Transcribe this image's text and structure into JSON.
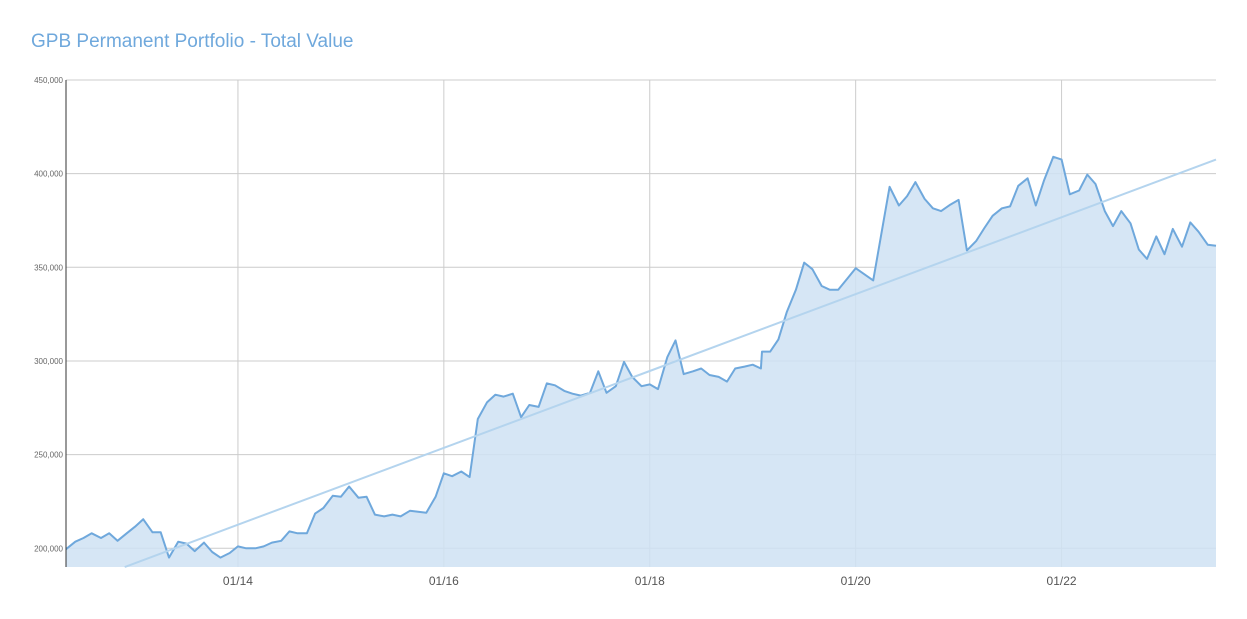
{
  "chart_data": {
    "type": "area",
    "title": "GPB Permanent Portfolio - Total Value",
    "xlabel": "",
    "ylabel": "",
    "y_ticks": [
      "200,000",
      "250,000",
      "300,000",
      "350,000",
      "400,000",
      "450,000"
    ],
    "y_tick_values": [
      200000,
      250000,
      300000,
      350000,
      400000,
      450000
    ],
    "x_ticks": [
      "01/14",
      "01/16",
      "01/18",
      "01/20",
      "01/22"
    ],
    "x_tick_values": [
      2014,
      2016,
      2018,
      2020,
      2022
    ],
    "xlim": [
      2012.33,
      2023.5
    ],
    "ylim": [
      190000,
      450000
    ],
    "grid": true,
    "legend": "none",
    "colors": {
      "line": "#6fa8dc",
      "fill": "#cfe2f3",
      "trend": "#b4d4ee",
      "grid": "#cccccc",
      "axis": "#333333"
    },
    "series": [
      {
        "values": [
          [
            2012.33,
            199500
          ],
          [
            2012.42,
            203500
          ],
          [
            2012.5,
            205500
          ],
          [
            2012.58,
            208000
          ],
          [
            2012.67,
            205500
          ],
          [
            2012.75,
            208000
          ],
          [
            2012.83,
            204000
          ],
          [
            2012.92,
            208000
          ],
          [
            2013.0,
            211500
          ],
          [
            2013.08,
            215500
          ],
          [
            2013.17,
            208500
          ],
          [
            2013.25,
            208500
          ],
          [
            2013.33,
            195000
          ],
          [
            2013.42,
            203500
          ],
          [
            2013.5,
            202500
          ],
          [
            2013.58,
            198500
          ],
          [
            2013.67,
            203000
          ],
          [
            2013.75,
            198000
          ],
          [
            2013.83,
            195000
          ],
          [
            2013.92,
            197500
          ],
          [
            2014.0,
            201000
          ],
          [
            2014.08,
            200000
          ],
          [
            2014.17,
            200000
          ],
          [
            2014.25,
            201000
          ],
          [
            2014.33,
            203000
          ],
          [
            2014.42,
            204000
          ],
          [
            2014.5,
            209000
          ],
          [
            2014.58,
            208000
          ],
          [
            2014.67,
            208000
          ],
          [
            2014.75,
            218500
          ],
          [
            2014.83,
            221500
          ],
          [
            2014.92,
            228000
          ],
          [
            2015.0,
            227500
          ],
          [
            2015.08,
            233000
          ],
          [
            2015.17,
            227000
          ],
          [
            2015.25,
            227500
          ],
          [
            2015.33,
            218000
          ],
          [
            2015.42,
            217000
          ],
          [
            2015.5,
            218000
          ],
          [
            2015.58,
            217000
          ],
          [
            2015.67,
            220000
          ],
          [
            2015.75,
            219500
          ],
          [
            2015.83,
            219000
          ],
          [
            2015.92,
            227500
          ],
          [
            2016.0,
            240000
          ],
          [
            2016.08,
            238500
          ],
          [
            2016.17,
            241000
          ],
          [
            2016.25,
            238000
          ],
          [
            2016.33,
            269000
          ],
          [
            2016.42,
            278000
          ],
          [
            2016.5,
            282000
          ],
          [
            2016.58,
            281000
          ],
          [
            2016.67,
            282500
          ],
          [
            2016.75,
            270000
          ],
          [
            2016.83,
            276500
          ],
          [
            2016.92,
            275500
          ],
          [
            2017.0,
            288000
          ],
          [
            2017.08,
            287000
          ],
          [
            2017.17,
            284000
          ],
          [
            2017.25,
            282500
          ],
          [
            2017.33,
            281500
          ],
          [
            2017.42,
            283000
          ],
          [
            2017.5,
            294500
          ],
          [
            2017.58,
            283000
          ],
          [
            2017.67,
            286500
          ],
          [
            2017.75,
            299500
          ],
          [
            2017.83,
            291500
          ],
          [
            2017.92,
            286500
          ],
          [
            2018.0,
            287500
          ],
          [
            2018.08,
            285000
          ],
          [
            2018.17,
            302000
          ],
          [
            2018.25,
            311000
          ],
          [
            2018.33,
            293000
          ],
          [
            2018.42,
            294500
          ],
          [
            2018.5,
            296000
          ],
          [
            2018.58,
            292500
          ],
          [
            2018.67,
            291500
          ],
          [
            2018.75,
            289000
          ],
          [
            2018.83,
            296000
          ],
          [
            2018.92,
            297000
          ],
          [
            2019.0,
            298000
          ],
          [
            2019.08,
            296000
          ],
          [
            2019.09,
            305000
          ],
          [
            2019.17,
            305000
          ],
          [
            2019.25,
            311500
          ],
          [
            2019.33,
            326000
          ],
          [
            2019.42,
            338000
          ],
          [
            2019.5,
            352500
          ],
          [
            2019.58,
            349000
          ],
          [
            2019.67,
            340000
          ],
          [
            2019.75,
            338000
          ],
          [
            2019.83,
            338000
          ],
          [
            2019.92,
            344000
          ],
          [
            2020.0,
            349500
          ],
          [
            2020.08,
            346500
          ],
          [
            2020.17,
            343000
          ],
          [
            2020.25,
            368000
          ],
          [
            2020.33,
            393000
          ],
          [
            2020.42,
            383000
          ],
          [
            2020.5,
            388000
          ],
          [
            2020.58,
            395500
          ],
          [
            2020.67,
            386500
          ],
          [
            2020.75,
            381500
          ],
          [
            2020.83,
            380000
          ],
          [
            2020.92,
            383500
          ],
          [
            2021.0,
            386000
          ],
          [
            2021.08,
            359000
          ],
          [
            2021.17,
            364000
          ],
          [
            2021.25,
            371000
          ],
          [
            2021.33,
            377500
          ],
          [
            2021.42,
            381500
          ],
          [
            2021.5,
            382500
          ],
          [
            2021.58,
            393500
          ],
          [
            2021.67,
            397500
          ],
          [
            2021.75,
            383000
          ],
          [
            2021.83,
            396500
          ],
          [
            2021.92,
            409000
          ],
          [
            2022.0,
            407500
          ],
          [
            2022.08,
            389000
          ],
          [
            2022.17,
            391000
          ],
          [
            2022.25,
            399500
          ],
          [
            2022.33,
            394500
          ],
          [
            2022.42,
            380000
          ],
          [
            2022.5,
            372000
          ],
          [
            2022.58,
            380000
          ],
          [
            2022.67,
            373500
          ],
          [
            2022.75,
            359500
          ],
          [
            2022.83,
            354500
          ],
          [
            2022.92,
            366500
          ],
          [
            2023.0,
            357000
          ],
          [
            2023.08,
            370500
          ],
          [
            2023.17,
            361000
          ],
          [
            2023.25,
            374000
          ],
          [
            2023.33,
            369000
          ],
          [
            2023.42,
            362000
          ],
          [
            2023.5,
            361500
          ]
        ]
      }
    ],
    "trendline": [
      [
        2012.9,
        190000
      ],
      [
        2023.5,
        407500
      ]
    ]
  }
}
